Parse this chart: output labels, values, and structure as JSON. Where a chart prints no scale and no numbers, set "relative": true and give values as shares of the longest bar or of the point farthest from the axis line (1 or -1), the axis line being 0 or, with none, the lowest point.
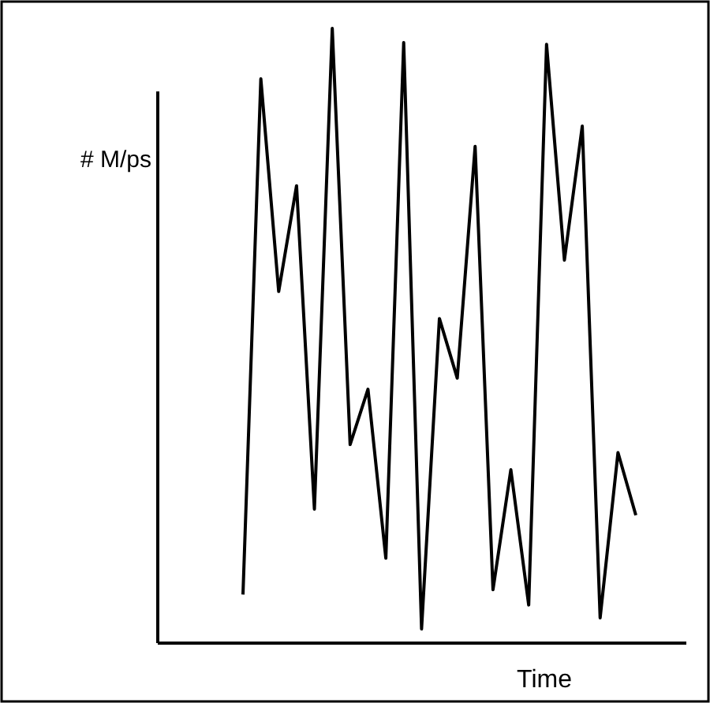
{
  "chart_data": {
    "type": "line",
    "relative": true,
    "xlabel": "Time",
    "ylabel": "# M/ps",
    "grid": false,
    "marker": "none",
    "color": "#000000",
    "categories": [
      null,
      null,
      null,
      null,
      null,
      null,
      null,
      null,
      null,
      null,
      null,
      null,
      null,
      null,
      null,
      null,
      null,
      null,
      null,
      null,
      null,
      null,
      null
    ],
    "values": [
      0.079,
      0.918,
      0.572,
      0.744,
      0.218,
      1,
      0.323,
      0.413,
      0.138,
      0.977,
      0.023,
      0.528,
      0.431,
      0.808,
      0.087,
      0.282,
      0.062,
      0.974,
      0.623,
      0.841,
      0.041,
      0.31,
      0.208
    ]
  }
}
